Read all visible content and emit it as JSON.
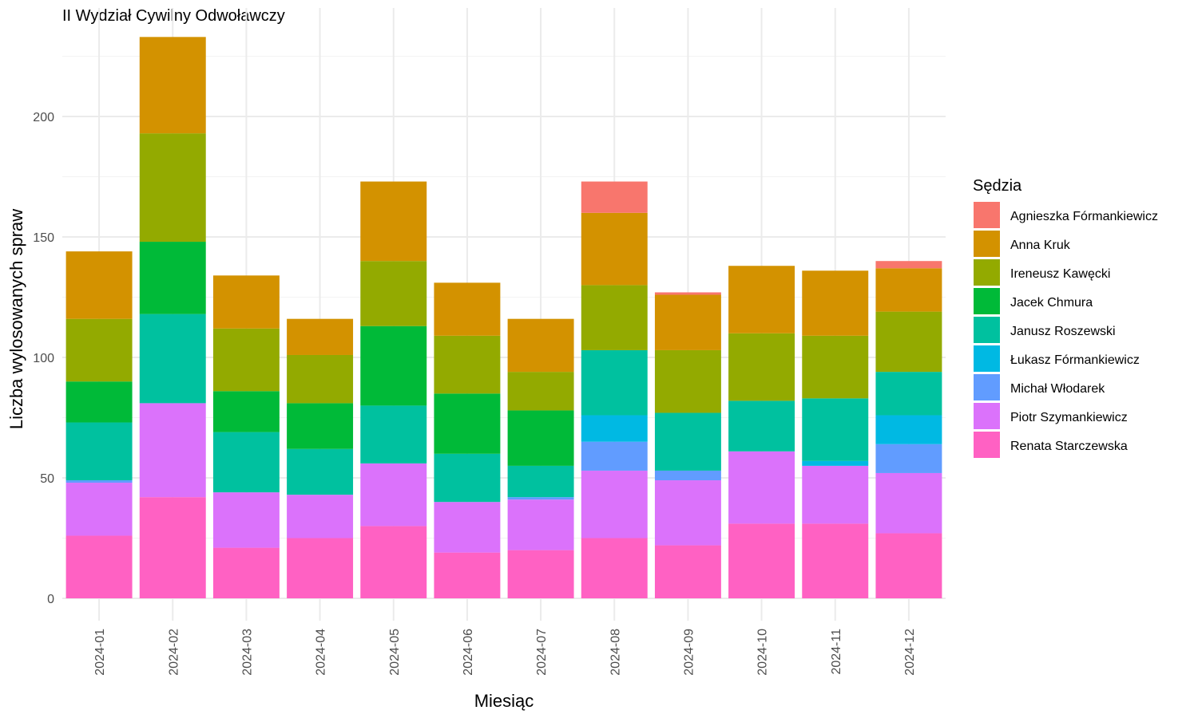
{
  "chart_data": {
    "type": "bar",
    "stacked": true,
    "title": "II Wydział Cywilny Odwoławczy",
    "xlabel": "Miesiąc",
    "ylabel": "Liczba wylosowanych spraw",
    "ylim": [
      0,
      240
    ],
    "yticks": [
      0,
      50,
      100,
      150,
      200
    ],
    "grid": true,
    "legend_title": "Sędzia",
    "legend_position": "right",
    "categories": [
      "2024-01",
      "2024-02",
      "2024-03",
      "2024-04",
      "2024-05",
      "2024-06",
      "2024-07",
      "2024-08",
      "2024-09",
      "2024-10",
      "2024-11",
      "2024-12"
    ],
    "series": [
      {
        "name": "Agnieszka Fórmankiewicz",
        "color": "#F8766D",
        "values": [
          0,
          0,
          0,
          0,
          0,
          0,
          0,
          13,
          1,
          0,
          0,
          3
        ]
      },
      {
        "name": "Anna Kruk",
        "color": "#D39200",
        "values": [
          28,
          40,
          22,
          15,
          33,
          22,
          22,
          30,
          23,
          28,
          27,
          18
        ]
      },
      {
        "name": "Ireneusz Kawęcki",
        "color": "#93AA00",
        "values": [
          26,
          45,
          26,
          20,
          27,
          24,
          16,
          27,
          26,
          28,
          26,
          25
        ]
      },
      {
        "name": "Jacek Chmura",
        "color": "#00BA38",
        "values": [
          17,
          30,
          17,
          19,
          33,
          25,
          23,
          0,
          0,
          0,
          0,
          0
        ]
      },
      {
        "name": "Janusz Roszewski",
        "color": "#00C19F",
        "values": [
          24,
          37,
          25,
          19,
          24,
          20,
          13,
          27,
          24,
          21,
          26,
          18
        ]
      },
      {
        "name": "Łukasz Fórmankiewicz",
        "color": "#00B9E3",
        "values": [
          0,
          0,
          0,
          0,
          0,
          0,
          0,
          11,
          0,
          0,
          2,
          12
        ]
      },
      {
        "name": "Michał Włodarek",
        "color": "#619CFF",
        "values": [
          1,
          0,
          0,
          0,
          0,
          0,
          1,
          12,
          4,
          0,
          0,
          12
        ]
      },
      {
        "name": "Piotr Szymankiewicz",
        "color": "#DB72FB",
        "values": [
          22,
          39,
          23,
          18,
          26,
          21,
          21,
          28,
          27,
          30,
          24,
          25
        ]
      },
      {
        "name": "Renata Starczewska",
        "color": "#FF61C3",
        "values": [
          26,
          42,
          21,
          25,
          30,
          19,
          20,
          25,
          22,
          31,
          31,
          27
        ]
      }
    ]
  }
}
